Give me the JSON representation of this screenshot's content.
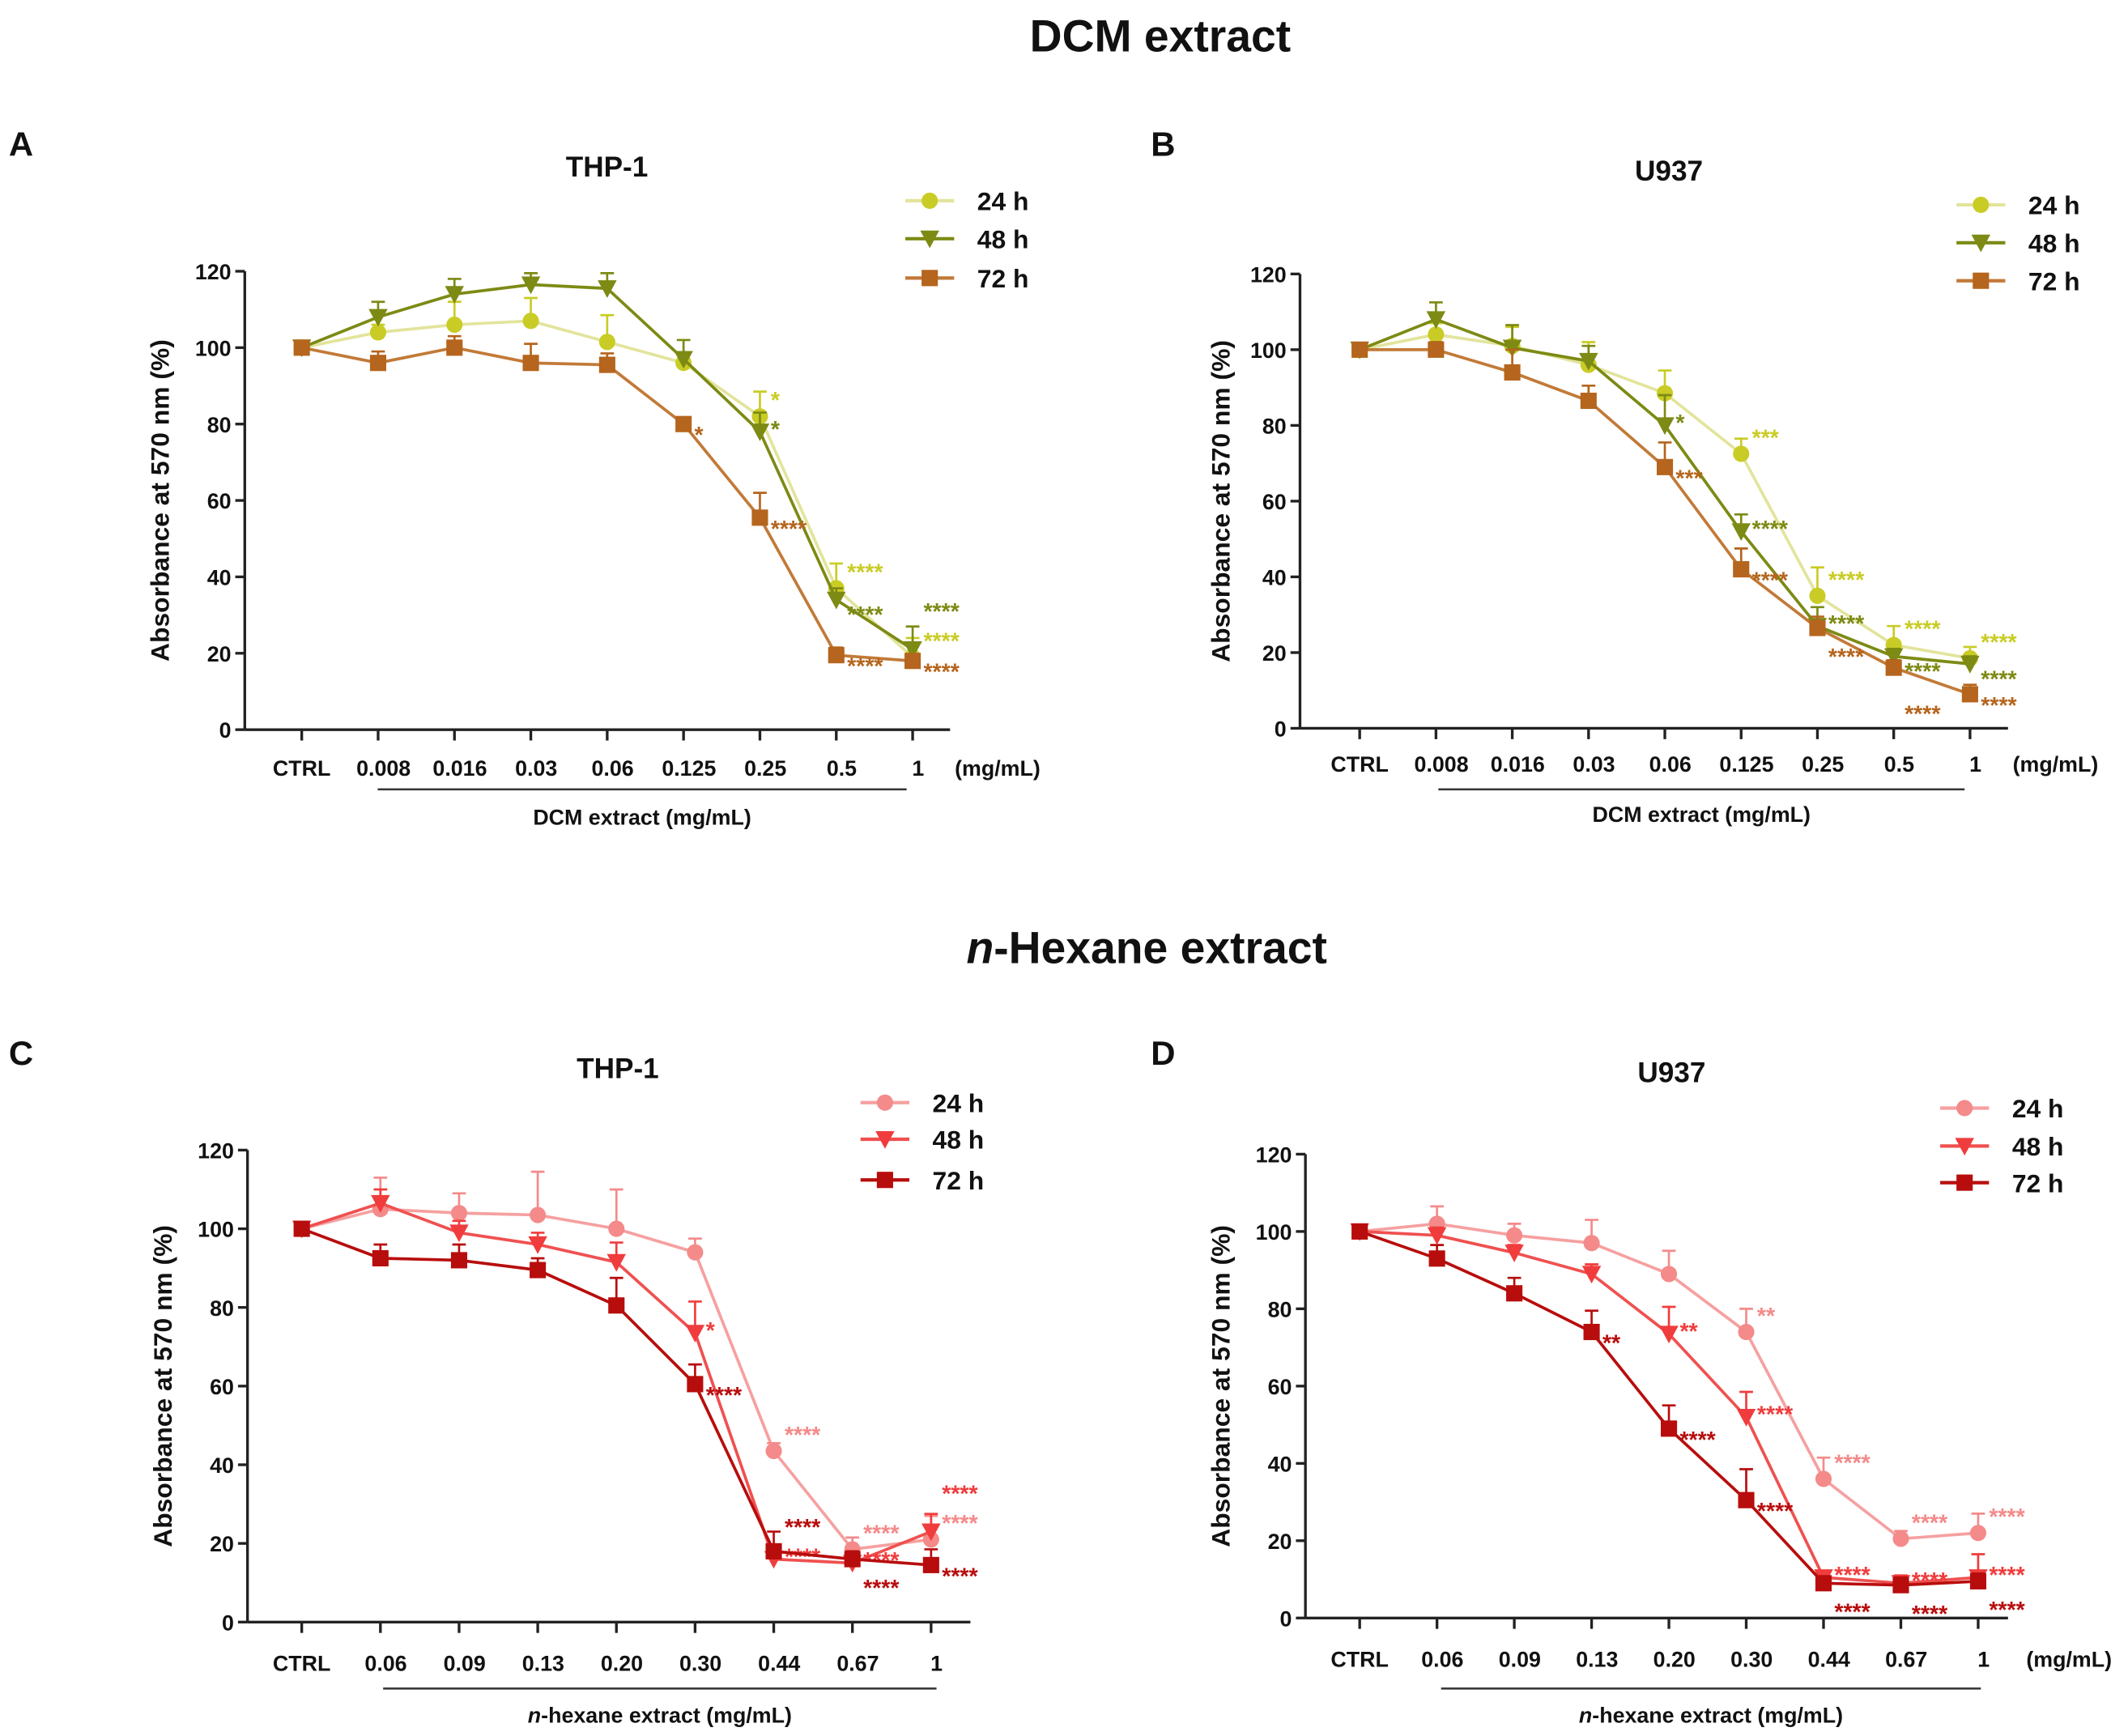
{
  "figure_titles": {
    "top": "DCM extract",
    "bottom_italic": "n",
    "bottom_rest": "-Hexane extract"
  },
  "chart_data": [
    {
      "panel": "A",
      "title": "THP-1",
      "type": "line",
      "categories": [
        "CTRL",
        "0.008",
        "0.016",
        "0.03",
        "0.06",
        "0.125",
        "0.25",
        "0.5",
        "1"
      ],
      "x_unit": "(mg/mL)",
      "xlabel_italic": "",
      "xlabel": "DCM extract (mg/mL)",
      "ylabel": "Absorbance at 570 nm (%)",
      "ylim": [
        0,
        120
      ],
      "yticks": [
        "0",
        "20",
        "40",
        "60",
        "80",
        "100",
        "120"
      ],
      "series": [
        {
          "name": "24 h",
          "marker": "circle",
          "color": "#c9cc25",
          "line_color": "#e2e49c",
          "values": [
            100,
            104,
            106,
            107,
            101.5,
            96,
            82,
            37,
            19
          ],
          "errors": [
            0,
            2,
            6,
            6,
            7,
            2,
            6.5,
            6.5,
            5
          ],
          "stars": [
            "",
            "",
            "",
            "",
            "",
            "",
            "*",
            "****",
            "****"
          ]
        },
        {
          "name": "48 h",
          "marker": "triangle-down",
          "color": "#7d8a14",
          "line_color": "#7d8a14",
          "values": [
            100,
            108,
            114,
            116.5,
            115.5,
            97,
            78,
            34,
            21
          ],
          "errors": [
            0,
            4,
            4,
            3,
            4,
            5,
            5,
            3,
            6
          ],
          "stars": [
            "",
            "",
            "",
            "",
            "",
            "",
            "*",
            "****",
            "****"
          ]
        },
        {
          "name": "72 h",
          "marker": "square",
          "color": "#b5651d",
          "line_color": "#c27a38",
          "values": [
            100,
            96,
            100,
            96,
            95.5,
            80,
            55.5,
            19.5,
            18
          ],
          "errors": [
            0,
            3,
            3,
            5,
            3,
            0,
            6.5,
            2,
            1
          ],
          "stars": [
            "",
            "",
            "",
            "",
            "",
            "*",
            "****",
            "****",
            "****"
          ]
        }
      ]
    },
    {
      "panel": "B",
      "title": "U937",
      "type": "line",
      "categories": [
        "CTRL",
        "0.008",
        "0.016",
        "0.03",
        "0.06",
        "0.125",
        "0.25",
        "0.5",
        "1"
      ],
      "x_unit": "(mg/mL)",
      "xlabel_italic": "",
      "xlabel": "DCM extract (mg/mL)",
      "ylabel": "Absorbance at 570 nm (%)",
      "ylim": [
        0,
        120
      ],
      "yticks": [
        "0",
        "20",
        "40",
        "60",
        "80",
        "100",
        "120"
      ],
      "series": [
        {
          "name": "24 h",
          "marker": "circle",
          "color": "#c9cc25",
          "line_color": "#e2e49c",
          "values": [
            100,
            104,
            101,
            96,
            88.5,
            72.5,
            35,
            22,
            18.5
          ],
          "errors": [
            0,
            3,
            5,
            6,
            6,
            4,
            7.5,
            5,
            3
          ],
          "stars": [
            "",
            "",
            "",
            "",
            "",
            "***",
            "****",
            "****",
            "****"
          ]
        },
        {
          "name": "48 h",
          "marker": "triangle-down",
          "color": "#7d8a14",
          "line_color": "#7d8a14",
          "values": [
            100,
            108,
            100.5,
            97,
            80,
            52,
            27,
            19,
            17
          ],
          "errors": [
            0,
            4.5,
            6,
            4,
            8,
            4.5,
            5,
            2,
            2
          ],
          "stars": [
            "",
            "",
            "",
            "",
            "*",
            "****",
            "****",
            "****",
            "****"
          ]
        },
        {
          "name": "72 h",
          "marker": "square",
          "color": "#b5651d",
          "line_color": "#c27a38",
          "values": [
            100,
            100,
            94,
            86.5,
            69,
            42,
            26.5,
            16,
            9
          ],
          "errors": [
            0,
            2,
            6,
            4,
            6.5,
            5.5,
            3,
            2,
            2.5
          ],
          "stars": [
            "",
            "",
            "",
            "",
            "***",
            "****",
            "****",
            "****",
            "****"
          ]
        }
      ]
    },
    {
      "panel": "C",
      "title": "THP-1",
      "type": "line",
      "categories": [
        "CTRL",
        "0.06",
        "0.09",
        "0.13",
        "0.20",
        "0.30",
        "0.44",
        "0.67",
        "1"
      ],
      "x_unit": "",
      "xlabel_italic": "n",
      "xlabel": "-hexane extract (mg/mL)",
      "ylabel": "Absorbance at 570 nm (%)",
      "ylim": [
        0,
        120
      ],
      "yticks": [
        "0",
        "20",
        "40",
        "60",
        "80",
        "100",
        "120"
      ],
      "series": [
        {
          "name": "24 h",
          "marker": "circle",
          "color": "#f48a8a",
          "line_color": "#f6a0a0",
          "values": [
            100,
            105,
            104,
            103.5,
            100,
            94,
            43.5,
            18.5,
            21
          ],
          "errors": [
            0,
            8,
            5,
            11,
            10,
            3.5,
            2,
            3,
            6
          ],
          "stars": [
            "",
            "",
            "",
            "",
            "",
            "",
            "****",
            "****",
            "****"
          ]
        },
        {
          "name": "48 h",
          "marker": "triangle-down",
          "color": "#f03c3c",
          "line_color": "#f05050",
          "values": [
            100,
            106.5,
            99,
            96,
            91.5,
            73.5,
            16,
            15,
            23
          ],
          "errors": [
            1,
            3.5,
            3,
            3,
            5,
            8,
            3,
            2,
            4.5
          ],
          "stars": [
            "",
            "",
            "",
            "",
            "",
            "*",
            "****",
            "****",
            "****"
          ]
        },
        {
          "name": "72 h",
          "marker": "square",
          "color": "#b80d0d",
          "line_color": "#b80d0d",
          "values": [
            100,
            92.5,
            92,
            89.5,
            80.5,
            60.5,
            18,
            16,
            14.5
          ],
          "errors": [
            0,
            3.5,
            4,
            3,
            7,
            5,
            5,
            2,
            4
          ],
          "stars": [
            "",
            "",
            "",
            "",
            "",
            "****",
            "****",
            "****",
            "****"
          ]
        }
      ]
    },
    {
      "panel": "D",
      "title": "U937",
      "type": "line",
      "categories": [
        "CTRL",
        "0.06",
        "0.09",
        "0.13",
        "0.20",
        "0.30",
        "0.44",
        "0.67",
        "1"
      ],
      "x_unit": "(mg/mL)",
      "xlabel_italic": "n",
      "xlabel": "-hexane extract (mg/mL)",
      "ylabel": "Absorbance at 570 nm (%)",
      "ylim": [
        0,
        120
      ],
      "yticks": [
        "0",
        "20",
        "40",
        "60",
        "80",
        "100",
        "120"
      ],
      "series": [
        {
          "name": "24 h",
          "marker": "circle",
          "color": "#f48a8a",
          "line_color": "#f6a0a0",
          "values": [
            100,
            102,
            99,
            97,
            89,
            74,
            36,
            20.5,
            22
          ],
          "errors": [
            0,
            4.5,
            3,
            6,
            6,
            6,
            5.5,
            2,
            5
          ],
          "stars": [
            "",
            "",
            "",
            "",
            "",
            "**",
            "****",
            "****",
            "****"
          ]
        },
        {
          "name": "48 h",
          "marker": "triangle-down",
          "color": "#f03c3c",
          "line_color": "#f05050",
          "values": [
            100,
            99,
            94.5,
            89,
            73.5,
            52,
            10.5,
            9,
            10.5
          ],
          "errors": [
            1.5,
            2,
            2,
            2.5,
            7,
            6.5,
            1,
            2,
            6
          ],
          "stars": [
            "",
            "",
            "",
            "",
            "**",
            "****",
            "****",
            "****",
            "****"
          ]
        },
        {
          "name": "72 h",
          "marker": "square",
          "color": "#b80d0d",
          "line_color": "#b80d0d",
          "values": [
            100,
            93,
            84,
            74,
            49,
            30.5,
            9,
            8.5,
            9.5
          ],
          "errors": [
            0,
            3.5,
            4,
            5.5,
            6,
            8,
            1,
            2,
            2
          ],
          "stars": [
            "",
            "",
            "",
            "**",
            "****",
            "****",
            "****",
            "****",
            "****"
          ]
        }
      ]
    }
  ]
}
